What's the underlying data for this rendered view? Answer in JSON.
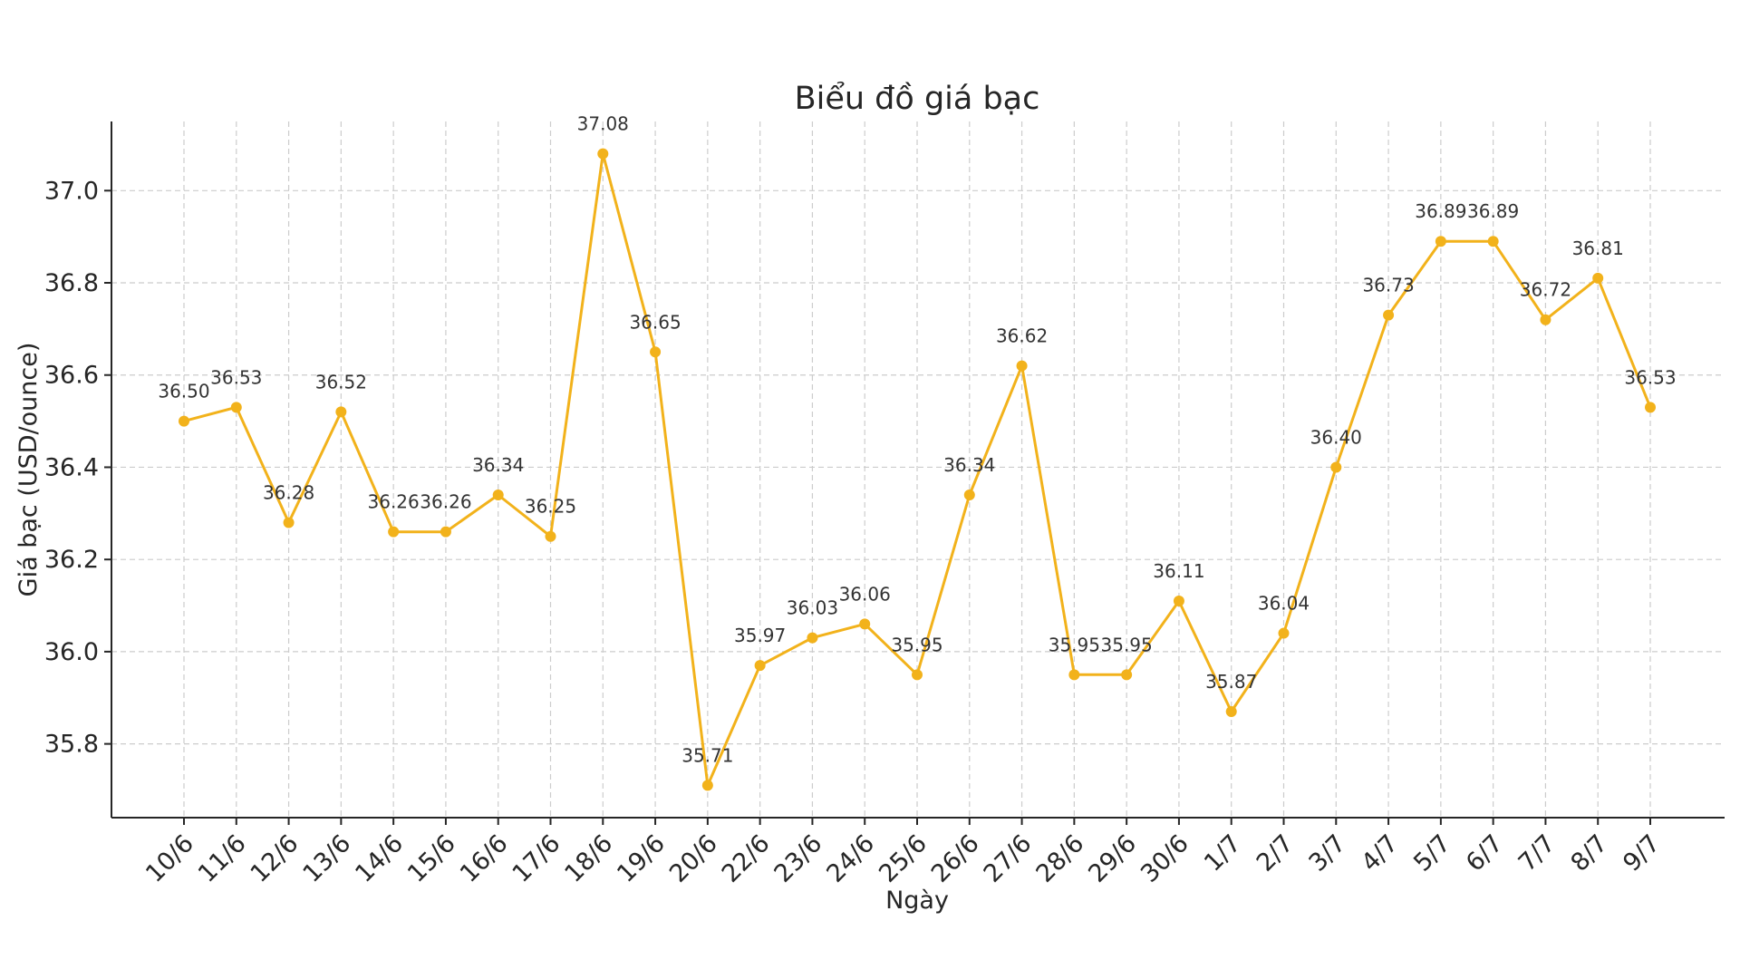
{
  "chart_data": {
    "type": "line",
    "title": "Biểu đồ giá bạc",
    "xlabel": "Ngày",
    "ylabel": "Giá bạc (USD/ounce)",
    "ylim": [
      35.64,
      37.15
    ],
    "yticks": [
      35.8,
      36.0,
      36.2,
      36.4,
      36.6,
      36.8,
      37.0
    ],
    "grid": true,
    "color": "#F2B21B",
    "categories": [
      "10/6",
      "11/6",
      "12/6",
      "13/6",
      "14/6",
      "15/6",
      "16/6",
      "17/6",
      "18/6",
      "19/6",
      "20/6",
      "22/6",
      "23/6",
      "24/6",
      "25/6",
      "26/6",
      "27/6",
      "28/6",
      "29/6",
      "30/6",
      "1/7",
      "2/7",
      "3/7",
      "4/7",
      "5/7",
      "6/7",
      "7/7",
      "8/7",
      "9/7"
    ],
    "values": [
      36.5,
      36.53,
      36.28,
      36.52,
      36.26,
      36.26,
      36.34,
      36.25,
      37.08,
      36.65,
      35.71,
      35.97,
      36.03,
      36.06,
      35.95,
      36.34,
      36.62,
      35.95,
      35.95,
      36.11,
      35.87,
      36.04,
      36.4,
      36.73,
      36.89,
      36.89,
      36.72,
      36.81,
      36.53
    ],
    "value_labels": [
      "36.50",
      "36.53",
      "36.28",
      "36.52",
      "36.26",
      "36.26",
      "36.34",
      "36.25",
      "37.08",
      "36.65",
      "35.71",
      "35.97",
      "36.03",
      "36.06",
      "35.95",
      "36.34",
      "36.62",
      "35.95",
      "35.95",
      "36.11",
      "35.87",
      "36.04",
      "36.40",
      "36.73",
      "36.89",
      "36.89",
      "36.72",
      "36.81",
      "36.53"
    ]
  }
}
